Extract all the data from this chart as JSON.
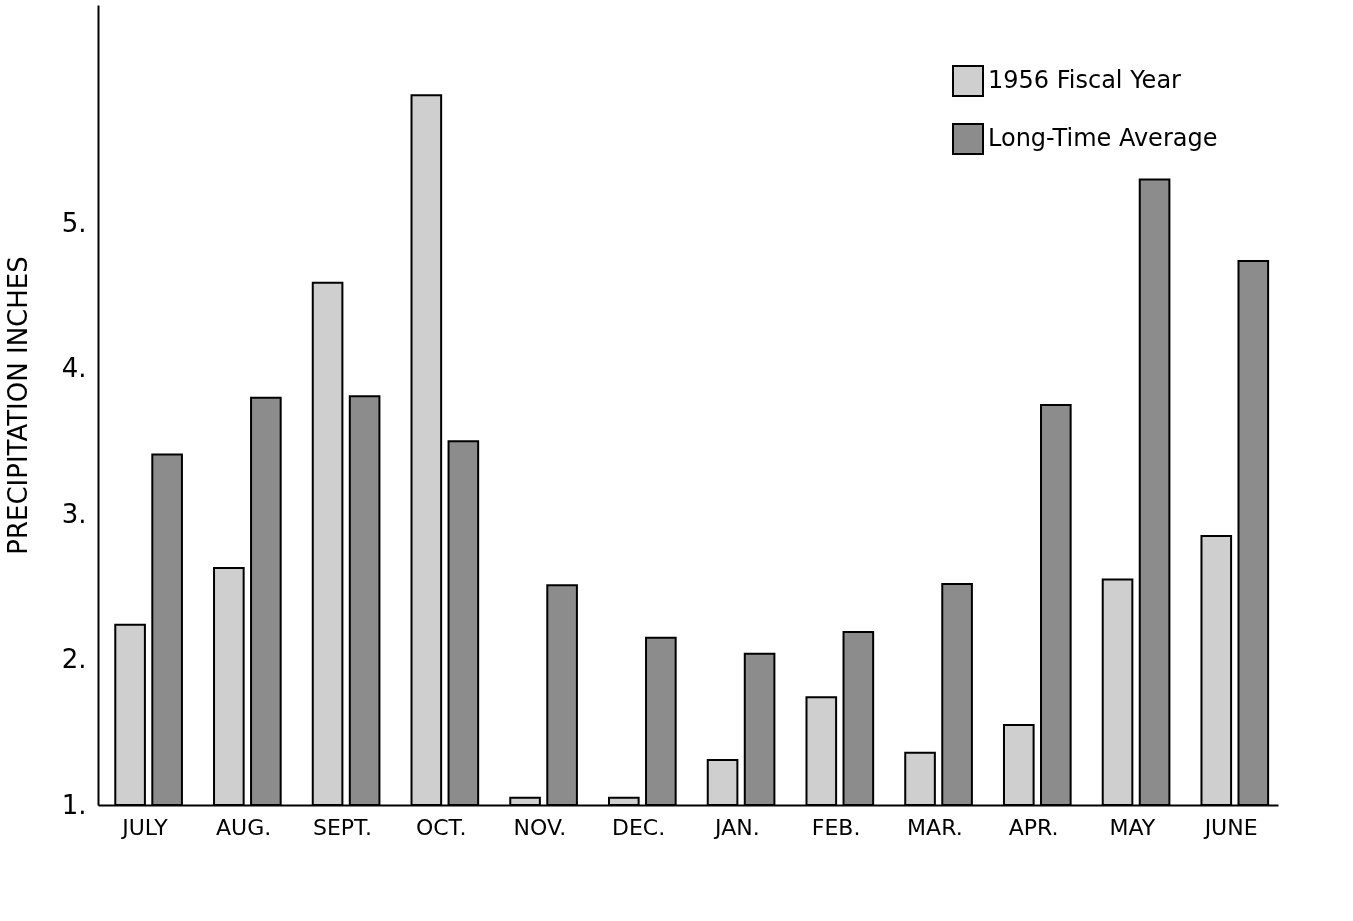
{
  "chart_data": {
    "type": "bar",
    "ylabel": "PRECIPITATION  INCHES",
    "categories": [
      "JULY",
      "AUG.",
      "SEPT.",
      "OCT.",
      "NOV.",
      "DEC.",
      "JAN.",
      "FEB.",
      "MAR.",
      "APR.",
      "MAY",
      "JUNE"
    ],
    "series": [
      {
        "name": "1956 Fiscal Year",
        "color": "#cfcfcf",
        "values": [
          2.24,
          2.63,
          4.59,
          5.88,
          1.05,
          1.05,
          1.31,
          1.74,
          1.36,
          1.55,
          2.55,
          2.85
        ]
      },
      {
        "name": "Long-Time Average",
        "color": "#8c8c8c",
        "values": [
          3.41,
          3.8,
          3.81,
          3.5,
          2.51,
          2.15,
          2.04,
          2.19,
          2.52,
          3.75,
          5.3,
          4.74
        ]
      }
    ],
    "ylim": [
      1,
      6.5
    ],
    "yticks": [
      {
        "value": 1,
        "label": "1."
      },
      {
        "value": 2,
        "label": "2."
      },
      {
        "value": 3,
        "label": "3."
      },
      {
        "value": 4,
        "label": "4."
      },
      {
        "value": 5,
        "label": "5."
      }
    ],
    "grid": false,
    "legend": "top right"
  }
}
